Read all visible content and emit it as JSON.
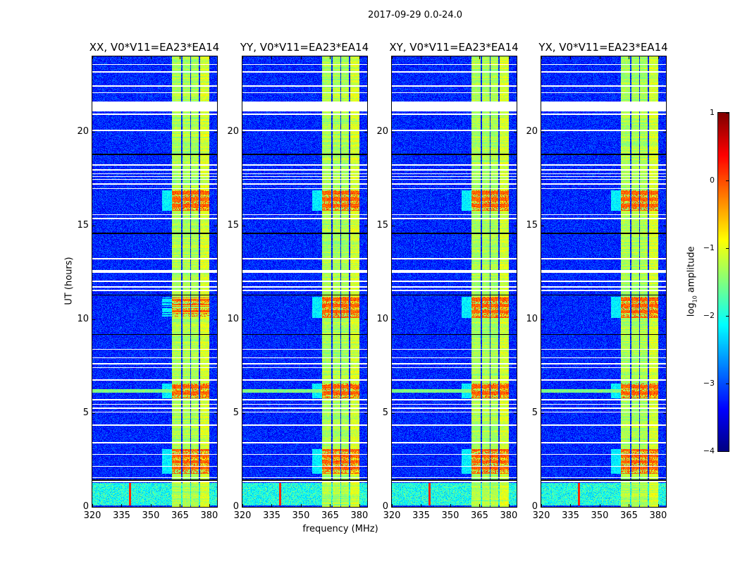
{
  "figure_title": "2017-09-29 0.0-24.0",
  "chart_data": {
    "type": "heatmap",
    "panels": [
      {
        "title": "XX, V0*V11=EA23*EA14",
        "seed": 11
      },
      {
        "title": "YY, V0*V11=EA23*EA14",
        "seed": 23
      },
      {
        "title": "XY, V0*V11=EA23*EA14",
        "seed": 37
      },
      {
        "title": "YX, V0*V11=EA23*EA14",
        "seed": 53
      }
    ],
    "xlabel": "frequency (MHz)",
    "ylabel": "UT (hours)",
    "xlim": [
      320,
      384
    ],
    "ylim": [
      0,
      24
    ],
    "xticks": [
      "320",
      "335",
      "350",
      "365",
      "380"
    ],
    "yticks": [
      "0",
      "5",
      "10",
      "15",
      "20"
    ],
    "colorbar": {
      "label": "log10 amplitude",
      "label_main": "log",
      "label_sub": "10",
      "label_rest": " amplitude",
      "range": [
        -4,
        1
      ],
      "ticks": [
        "1",
        "0",
        "−1",
        "−2",
        "−3",
        "−4"
      ]
    },
    "colormap": "jet",
    "background_level": -3.2,
    "rfi_subbands_mhz": [
      [
        360.5,
        365.5
      ],
      [
        366,
        370
      ],
      [
        370.5,
        374.5
      ],
      [
        375,
        380
      ]
    ],
    "rfi_band_level": -1.3,
    "strong_rfi_hours": [
      [
        15.8,
        16.9
      ],
      [
        5.8,
        6.6
      ],
      [
        1.8,
        3.1
      ],
      [
        10.1,
        11.2
      ]
    ],
    "broadband_noise_hours": [
      0.1,
      1.3
    ],
    "flagged_rows_hours": [
      [
        23.55,
        23.62
      ],
      [
        23.15,
        23.22
      ],
      [
        22.4,
        22.47
      ],
      [
        22.05,
        22.1
      ],
      [
        21.1,
        21.6
      ],
      [
        20.9,
        20.96
      ],
      [
        20.05,
        20.12
      ],
      [
        18.2,
        18.26
      ],
      [
        17.95,
        18.0
      ],
      [
        17.75,
        17.8
      ],
      [
        17.6,
        17.65
      ],
      [
        17.45,
        17.5
      ],
      [
        17.2,
        17.26
      ],
      [
        16.95,
        17.0
      ],
      [
        15.55,
        15.62
      ],
      [
        15.35,
        15.42
      ],
      [
        13.2,
        13.26
      ],
      [
        12.5,
        12.62
      ],
      [
        12.0,
        12.06
      ],
      [
        11.7,
        11.76
      ],
      [
        11.5,
        11.58
      ],
      [
        8.4,
        8.45
      ],
      [
        7.95,
        7.99
      ],
      [
        7.6,
        7.67
      ],
      [
        7.4,
        7.45
      ],
      [
        6.75,
        6.8
      ],
      [
        5.7,
        5.75
      ],
      [
        5.45,
        5.5
      ],
      [
        5.25,
        5.3
      ],
      [
        5.05,
        5.1
      ],
      [
        4.35,
        4.4
      ],
      [
        3.4,
        3.46
      ],
      [
        2.8,
        2.84
      ],
      [
        2.15,
        2.2
      ],
      [
        1.55,
        1.6
      ],
      [
        1.32,
        1.42
      ]
    ],
    "dark_rows_hours": [
      18.8,
      14.6,
      11.3,
      9.2,
      1.45
    ]
  }
}
